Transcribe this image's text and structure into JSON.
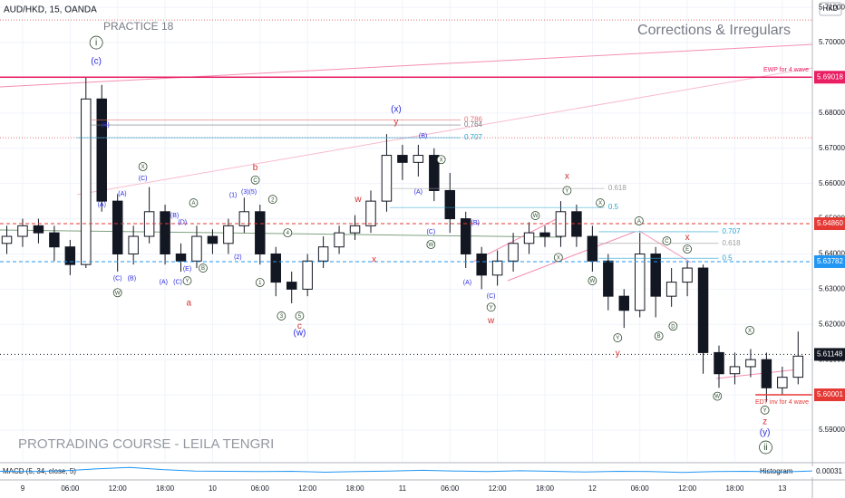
{
  "chart_data": {
    "type": "candlestick",
    "title": "AUD/HKD, 15, OANDA",
    "currency": "HKD",
    "practice": "PRACTICE 18",
    "subtitle": "Corrections & Irregulars",
    "watermark": "PROTRADING COURSE - LEILA TENGRI",
    "xlim": [
      -0.43,
      50.9
    ],
    "ylim": [
      5.581,
      5.7121
    ],
    "xticks": [
      {
        "value": 1,
        "label": "9"
      },
      {
        "value": 4,
        "label": "06:00"
      },
      {
        "value": 7,
        "label": "12:00"
      },
      {
        "value": 10,
        "label": "18:00"
      },
      {
        "value": 13,
        "label": "10"
      },
      {
        "value": 16,
        "label": "06:00"
      },
      {
        "value": 19,
        "label": "12:00"
      },
      {
        "value": 22,
        "label": "18:00"
      },
      {
        "value": 25,
        "label": "11"
      },
      {
        "value": 28,
        "label": "06:00"
      },
      {
        "value": 31,
        "label": "12:00"
      },
      {
        "value": 34,
        "label": "18:00"
      },
      {
        "value": 37,
        "label": "12"
      },
      {
        "value": 40,
        "label": "06:00"
      },
      {
        "value": 43,
        "label": "12:00"
      },
      {
        "value": 46,
        "label": "18:00"
      },
      {
        "value": 49,
        "label": "13"
      }
    ],
    "yticks": [
      {
        "value": 5.59,
        "label": "5.59000"
      },
      {
        "value": 5.6,
        "label": "5.60000"
      },
      {
        "value": 5.61,
        "label": "5.61000"
      },
      {
        "value": 5.62,
        "label": "5.62000"
      },
      {
        "value": 5.63,
        "label": "5.63000"
      },
      {
        "value": 5.64,
        "label": "5.64000"
      },
      {
        "value": 5.65,
        "label": "5.65000"
      },
      {
        "value": 5.66,
        "label": "5.66000"
      },
      {
        "value": 5.67,
        "label": "5.67000"
      },
      {
        "value": 5.68,
        "label": "5.68000"
      },
      {
        "value": 5.69,
        "label": "5.69000"
      },
      {
        "value": 5.7,
        "label": "5.70000"
      },
      {
        "value": 5.71,
        "label": "5.71000"
      }
    ],
    "up_color": "#ffffff",
    "down_color": "#131722",
    "open": [
      5.643,
      5.645,
      5.648,
      5.646,
      5.642,
      5.637,
      5.684,
      5.655,
      5.64,
      5.645,
      5.652,
      5.64,
      5.638,
      5.645,
      5.643,
      5.648,
      5.652,
      5.64,
      5.632,
      5.63,
      5.638,
      5.642,
      5.646,
      5.648,
      5.655,
      5.668,
      5.666,
      5.668,
      5.658,
      5.65,
      5.64,
      5.634,
      5.638,
      5.643,
      5.646,
      5.645,
      5.652,
      5.645,
      5.638,
      5.628,
      5.624,
      5.64,
      5.628,
      5.632,
      5.636,
      5.612,
      5.606,
      5.608,
      5.61,
      5.602,
      5.605
    ],
    "high": [
      5.648,
      5.65,
      5.65,
      5.648,
      5.644,
      5.69,
      5.688,
      5.657,
      5.648,
      5.659,
      5.654,
      5.643,
      5.648,
      5.647,
      5.65,
      5.656,
      5.654,
      5.642,
      5.635,
      5.64,
      5.645,
      5.648,
      5.651,
      5.658,
      5.674,
      5.671,
      5.671,
      5.67,
      5.663,
      5.652,
      5.642,
      5.641,
      5.646,
      5.649,
      5.648,
      5.655,
      5.654,
      5.648,
      5.64,
      5.63,
      5.646,
      5.642,
      5.636,
      5.638,
      5.637,
      5.614,
      5.612,
      5.613,
      5.612,
      5.608,
      5.618
    ],
    "low": [
      5.64,
      5.642,
      5.643,
      5.638,
      5.634,
      5.636,
      5.652,
      5.635,
      5.637,
      5.643,
      5.637,
      5.635,
      5.636,
      5.64,
      5.64,
      5.646,
      5.637,
      5.628,
      5.626,
      5.628,
      5.636,
      5.64,
      5.644,
      5.646,
      5.652,
      5.661,
      5.662,
      5.655,
      5.646,
      5.636,
      5.63,
      5.631,
      5.635,
      5.64,
      5.642,
      5.642,
      5.642,
      5.635,
      5.624,
      5.619,
      5.622,
      5.622,
      5.625,
      5.628,
      5.606,
      5.602,
      5.603,
      5.605,
      5.598,
      5.6,
      5.603
    ],
    "close": [
      5.645,
      5.648,
      5.646,
      5.642,
      5.637,
      5.684,
      5.655,
      5.64,
      5.645,
      5.652,
      5.64,
      5.638,
      5.645,
      5.643,
      5.648,
      5.652,
      5.64,
      5.632,
      5.63,
      5.638,
      5.642,
      5.646,
      5.648,
      5.655,
      5.668,
      5.666,
      5.668,
      5.658,
      5.65,
      5.64,
      5.634,
      5.638,
      5.643,
      5.646,
      5.645,
      5.652,
      5.645,
      5.638,
      5.628,
      5.624,
      5.64,
      5.628,
      5.632,
      5.636,
      5.612,
      5.606,
      5.608,
      5.61,
      5.602,
      5.605,
      5.611
    ],
    "levels": [
      {
        "price": 5.7064,
        "color": "#e57373",
        "dash": "1 2"
      },
      {
        "price": 5.673,
        "color": "#e57373",
        "dash": "1 2"
      },
      {
        "price": 5.69018,
        "color": "#e91e63",
        "dash": "",
        "note": "EWP for 4 wave"
      },
      {
        "price": 5.6486,
        "tag": "5.64860",
        "color": "#e53935",
        "dash": "4 3"
      },
      {
        "price": 5.63782,
        "color": "#2196f3",
        "dash": "4 3"
      },
      {
        "price": 5.61148,
        "color": "#131722",
        "dash": "1 3"
      },
      {
        "price": 5.60001,
        "color": "#e53935",
        "dash": "",
        "x0": 47.3,
        "note": "EDT inv for 4 wave"
      }
    ],
    "fibs": [
      {
        "label": "0.786",
        "x0": 5.3,
        "x": 28.9,
        "y": 5.6781,
        "color": "#e57373"
      },
      {
        "label": "0.764",
        "x0": 5.3,
        "x": 28.9,
        "y": 5.6766,
        "color": "#787b86"
      },
      {
        "label": "0.707",
        "x0": 4.4,
        "x": 28.9,
        "y": 5.673,
        "color": "#26a6d1"
      },
      {
        "label": "0.618",
        "x0": 24.2,
        "x": 38.0,
        "y": 5.6586,
        "color": "#9e9e9e"
      },
      {
        "label": "0.5",
        "x0": 24.2,
        "x": 38.0,
        "y": 5.6532,
        "color": "#26a6d1"
      },
      {
        "label": "0.707",
        "x0": 37.4,
        "x": 45.2,
        "y": 5.6463,
        "color": "#26a6d1"
      },
      {
        "label": "0.618",
        "x0": 37.4,
        "x": 45.2,
        "y": 5.643,
        "color": "#9e9e9e"
      },
      {
        "label": "0.5",
        "x0": 37.4,
        "x": 45.2,
        "y": 5.6388,
        "color": "#26a6d1"
      }
    ],
    "waves": [
      {
        "text": "i",
        "x": 5.65,
        "y": 5.7,
        "style": "circle"
      },
      {
        "text": "(c)",
        "x": 5.65,
        "y": 5.6946,
        "style": "blue"
      },
      {
        "text": "(B)",
        "x": 6.22,
        "y": 5.6766,
        "style": "blue"
      },
      {
        "text": "(A)",
        "x": 6.0,
        "y": 5.654,
        "style": "blue"
      },
      {
        "text": "(C)",
        "x": 7.0,
        "y": 5.633,
        "style": "blue"
      },
      {
        "text": "W",
        "x": 7.0,
        "y": 5.629,
        "style": "circle"
      },
      {
        "text": "(B)",
        "x": 7.9,
        "y": 5.633,
        "style": "blue"
      },
      {
        "text": "X",
        "x": 8.6,
        "y": 5.6648,
        "style": "circle"
      },
      {
        "text": "(C)",
        "x": 8.6,
        "y": 5.6614,
        "style": "blue"
      },
      {
        "text": "(A)",
        "x": 7.3,
        "y": 5.657,
        "style": "blue"
      },
      {
        "text": "(A)",
        "x": 9.9,
        "y": 5.632,
        "style": "blue"
      },
      {
        "text": "(C)",
        "x": 10.8,
        "y": 5.632,
        "style": "blue"
      },
      {
        "text": "Y",
        "x": 11.4,
        "y": 5.6324,
        "style": "circle"
      },
      {
        "text": "(E)",
        "x": 11.4,
        "y": 5.6357,
        "style": "blue"
      },
      {
        "text": "(B)",
        "x": 10.6,
        "y": 5.6509,
        "style": "blue"
      },
      {
        "text": "(D)",
        "x": 11.1,
        "y": 5.649,
        "style": "blue"
      },
      {
        "text": "A",
        "x": 11.8,
        "y": 5.6545,
        "style": "circle"
      },
      {
        "text": "B",
        "x": 12.4,
        "y": 5.636,
        "style": "circle"
      },
      {
        "text": "a",
        "x": 11.5,
        "y": 5.626,
        "style": "red"
      },
      {
        "text": "b",
        "x": 15.7,
        "y": 5.6645,
        "style": "red"
      },
      {
        "text": "C",
        "x": 15.7,
        "y": 5.661,
        "style": "circle"
      },
      {
        "text": "(1)",
        "x": 14.3,
        "y": 5.6566,
        "style": "blue"
      },
      {
        "text": "(3)(5)",
        "x": 15.3,
        "y": 5.6576,
        "style": "blue"
      },
      {
        "text": "(2)",
        "x": 14.6,
        "y": 5.639,
        "style": "blue"
      },
      {
        "text": "2",
        "x": 16.8,
        "y": 5.6555,
        "style": "circle"
      },
      {
        "text": "4",
        "x": 17.75,
        "y": 5.646,
        "style": "circle"
      },
      {
        "text": "1",
        "x": 16.0,
        "y": 5.6319,
        "style": "circle"
      },
      {
        "text": "3",
        "x": 17.35,
        "y": 5.6224,
        "style": "circle"
      },
      {
        "text": "5",
        "x": 18.5,
        "y": 5.6224,
        "style": "circle"
      },
      {
        "text": "c",
        "x": 18.5,
        "y": 5.6195,
        "style": "red"
      },
      {
        "text": "(w)",
        "x": 18.5,
        "y": 5.6175,
        "style": "blue"
      },
      {
        "text": "w",
        "x": 22.2,
        "y": 5.6555,
        "style": "red"
      },
      {
        "text": "x",
        "x": 23.2,
        "y": 5.6383,
        "style": "red"
      },
      {
        "text": "(x)",
        "x": 24.6,
        "y": 5.681,
        "style": "blue"
      },
      {
        "text": "y",
        "x": 24.6,
        "y": 5.6774,
        "style": "red"
      },
      {
        "text": "(B)",
        "x": 26.3,
        "y": 5.6735,
        "style": "blue"
      },
      {
        "text": "X",
        "x": 27.45,
        "y": 5.6668,
        "style": "circle"
      },
      {
        "text": "(A)",
        "x": 26.0,
        "y": 5.6576,
        "style": "blue"
      },
      {
        "text": "(C)",
        "x": 26.8,
        "y": 5.6463,
        "style": "blue"
      },
      {
        "text": "W",
        "x": 26.8,
        "y": 5.6427,
        "style": "circle"
      },
      {
        "text": "(B)",
        "x": 29.6,
        "y": 5.6488,
        "style": "blue"
      },
      {
        "text": "(A)",
        "x": 29.1,
        "y": 5.6319,
        "style": "blue"
      },
      {
        "text": "(C)",
        "x": 30.6,
        "y": 5.628,
        "style": "blue"
      },
      {
        "text": "Y",
        "x": 30.6,
        "y": 5.6249,
        "style": "circle"
      },
      {
        "text": "w",
        "x": 30.6,
        "y": 5.621,
        "style": "red"
      },
      {
        "text": "x",
        "x": 35.4,
        "y": 5.662,
        "style": "red"
      },
      {
        "text": "Y",
        "x": 35.4,
        "y": 5.658,
        "style": "circle"
      },
      {
        "text": "W",
        "x": 33.4,
        "y": 5.6509,
        "style": "circle"
      },
      {
        "text": "X",
        "x": 34.85,
        "y": 5.639,
        "style": "circle"
      },
      {
        "text": "X",
        "x": 37.5,
        "y": 5.6545,
        "style": "circle"
      },
      {
        "text": "W",
        "x": 37.0,
        "y": 5.6324,
        "style": "circle"
      },
      {
        "text": "Y",
        "x": 38.6,
        "y": 5.6162,
        "style": "circle"
      },
      {
        "text": "y",
        "x": 38.6,
        "y": 5.6118,
        "style": "red"
      },
      {
        "text": "A",
        "x": 39.95,
        "y": 5.6494,
        "style": "circle"
      },
      {
        "text": "C",
        "x": 41.7,
        "y": 5.6437,
        "style": "circle"
      },
      {
        "text": "x",
        "x": 43.0,
        "y": 5.6447,
        "style": "red"
      },
      {
        "text": "E",
        "x": 43.0,
        "y": 5.6414,
        "style": "circle"
      },
      {
        "text": "B",
        "x": 41.2,
        "y": 5.6167,
        "style": "circle"
      },
      {
        "text": "D",
        "x": 42.1,
        "y": 5.6195,
        "style": "circle"
      },
      {
        "text": "X",
        "x": 46.95,
        "y": 5.6183,
        "style": "circle"
      },
      {
        "text": "W",
        "x": 44.9,
        "y": 5.5996,
        "style": "circle"
      },
      {
        "text": "Y",
        "x": 47.9,
        "y": 5.5957,
        "style": "circle"
      },
      {
        "text": "z",
        "x": 47.9,
        "y": 5.5923,
        "style": "red"
      },
      {
        "text": "(y)",
        "x": 47.9,
        "y": 5.5892,
        "style": "blue"
      },
      {
        "text": "ii",
        "x": 47.95,
        "y": 5.5851,
        "style": "circle"
      }
    ],
    "macd": {
      "title": "MACD (5, 34, close, 5)",
      "legend": "Histogram",
      "value": 0.00031,
      "color": "#2196f3",
      "ylim": [
        -0.003,
        0.003
      ],
      "values": [
        0.0002,
        0.0001,
        0.0004,
        0.0012,
        0.0018,
        0.0009,
        0.0003,
        0.0002,
        0.0001,
        0.0002,
        -0.0002,
        0.0001,
        0.0003,
        0.0006,
        0.0003,
        0.0001,
        0.0004,
        0.0002,
        -0.0001,
        0.0002,
        0.0001,
        -0.0003,
        0.0001,
        0.0002,
        -0.0001,
        0.00031
      ]
    }
  }
}
